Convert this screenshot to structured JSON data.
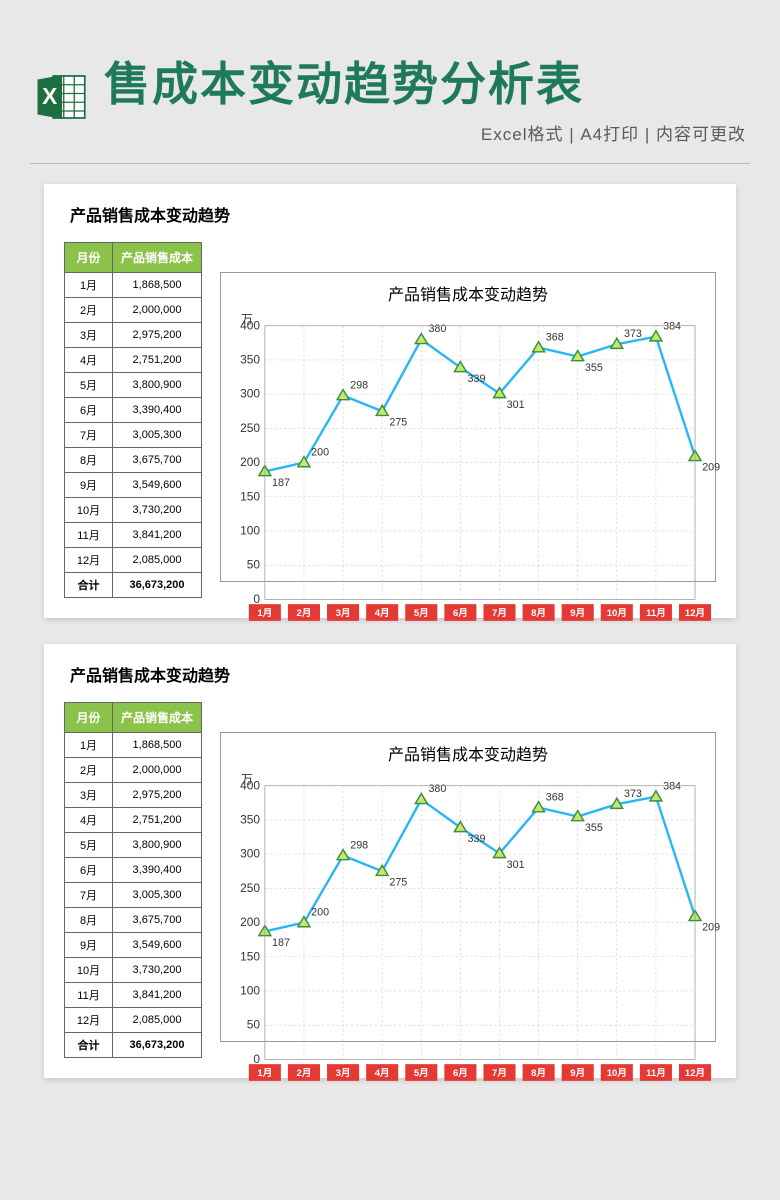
{
  "header": {
    "title": "售成本变动趋势分析表",
    "title_color": "#1e7a5a",
    "subtitle": "Excel格式 | A4打印 | 内容可更改",
    "excel_icon_colors": {
      "dark": "#1d6f42",
      "light": "#2e8b57",
      "white": "#ffffff"
    }
  },
  "panel": {
    "title": "产品销售成本变动趋势",
    "table": {
      "columns": [
        "月份",
        "产品销售成本"
      ],
      "header_bg": "#8bc34a",
      "header_fg": "#ffffff",
      "border_color": "#666666",
      "rows": [
        [
          "1月",
          "1,868,500"
        ],
        [
          "2月",
          "2,000,000"
        ],
        [
          "3月",
          "2,975,200"
        ],
        [
          "4月",
          "2,751,200"
        ],
        [
          "5月",
          "3,800,900"
        ],
        [
          "6月",
          "3,390,400"
        ],
        [
          "7月",
          "3,005,300"
        ],
        [
          "8月",
          "3,675,700"
        ],
        [
          "9月",
          "3,549,600"
        ],
        [
          "10月",
          "3,730,200"
        ],
        [
          "11月",
          "3,841,200"
        ],
        [
          "12月",
          "2,085,000"
        ]
      ],
      "total_row": [
        "合计",
        "36,673,200"
      ]
    },
    "chart": {
      "type": "line",
      "title": "产品销售成本变动趋势",
      "y_unit": "万",
      "x_labels": [
        "1月",
        "2月",
        "3月",
        "4月",
        "5月",
        "6月",
        "7月",
        "8月",
        "9月",
        "10月",
        "11月",
        "12月"
      ],
      "values": [
        187,
        200,
        298,
        275,
        380,
        339,
        301,
        368,
        355,
        373,
        384,
        209
      ],
      "ylim": [
        0,
        400
      ],
      "ytick_step": 50,
      "line_color": "#29b6f6",
      "marker_fill": "#c5e86c",
      "marker_stroke": "#388e3c",
      "grid_color": "#cccccc",
      "x_axis_bg": "#e53935",
      "background_color": "#ffffff",
      "label_fontsize": 9
    }
  }
}
